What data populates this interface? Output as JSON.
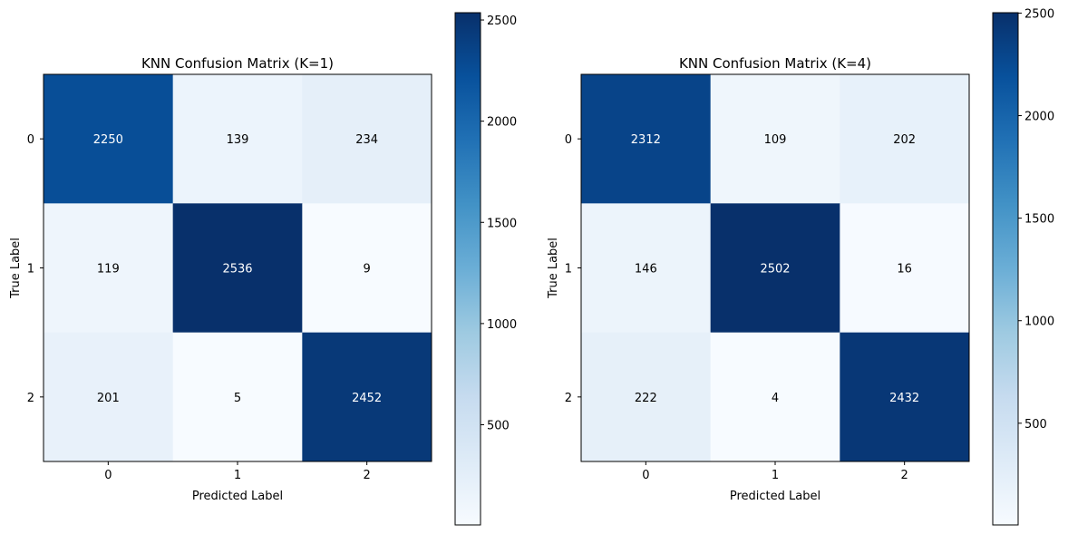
{
  "chart_data": [
    {
      "type": "heatmap",
      "title": "KNN Confusion Matrix (K=1)",
      "xlabel": "Predicted Label",
      "ylabel": "True Label",
      "x_categories": [
        "0",
        "1",
        "2"
      ],
      "y_categories": [
        "0",
        "1",
        "2"
      ],
      "values": [
        [
          2250,
          139,
          234
        ],
        [
          119,
          2536,
          9
        ],
        [
          201,
          5,
          2452
        ]
      ],
      "colormap": "Blues",
      "color_range": [
        5,
        2536
      ],
      "colorbar_ticks": [
        {
          "value": 500,
          "label": "500"
        },
        {
          "value": 1000,
          "label": "1000"
        },
        {
          "value": 1500,
          "label": "1500"
        },
        {
          "value": 2000,
          "label": "2000"
        },
        {
          "value": 2500,
          "label": "2500"
        }
      ]
    },
    {
      "type": "heatmap",
      "title": "KNN Confusion Matrix (K=4)",
      "xlabel": "Predicted Label",
      "ylabel": "True Label",
      "x_categories": [
        "0",
        "1",
        "2"
      ],
      "y_categories": [
        "0",
        "1",
        "2"
      ],
      "values": [
        [
          2312,
          109,
          202
        ],
        [
          146,
          2502,
          16
        ],
        [
          222,
          4,
          2432
        ]
      ],
      "colormap": "Blues",
      "color_range": [
        4,
        2502
      ],
      "colorbar_ticks": [
        {
          "value": 500,
          "label": "500"
        },
        {
          "value": 1000,
          "label": "1000"
        },
        {
          "value": 1500,
          "label": "1500"
        },
        {
          "value": 2000,
          "label": "2000"
        },
        {
          "value": 2500,
          "label": "2500"
        }
      ]
    }
  ]
}
